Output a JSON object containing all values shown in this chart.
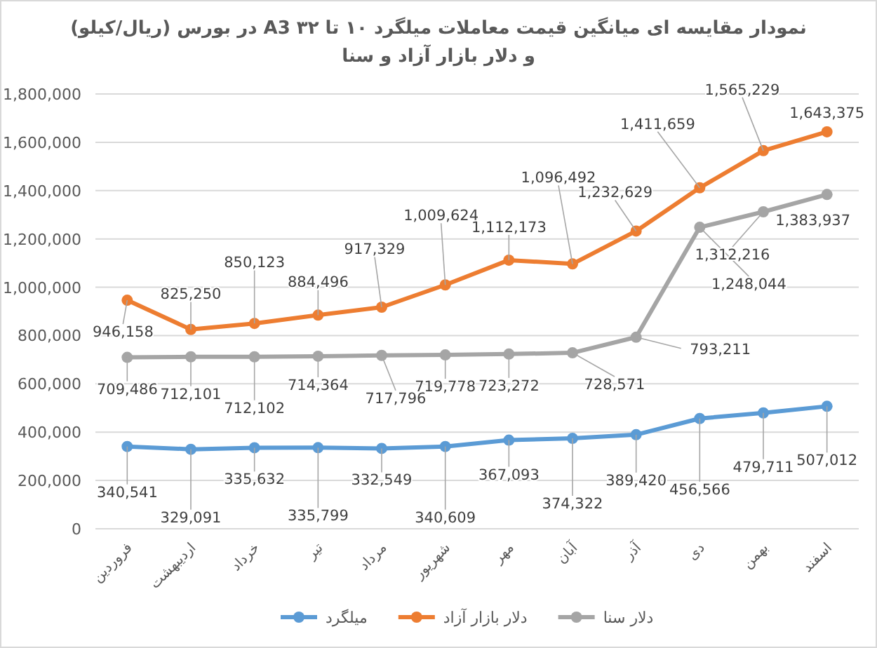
{
  "chart_data": {
    "type": "line",
    "title": "نمودار مقایسه ای میانگین قیمت معاملات میلگرد ۱۰ تا ۳۲ A3 در بورس  (ریال/کیلو)",
    "subtitle": "و دلار بازار آزاد و سنا",
    "categories": [
      "فروردین",
      "اردیبهشت",
      "خرداد",
      "تیر",
      "مرداد",
      "شهریور",
      "مهر",
      "آبان",
      "آذر",
      "دی",
      "بهمن",
      "اسفند"
    ],
    "series": [
      {
        "name": "میلگرد",
        "color": "#5b9bd5",
        "values": [
          340541,
          329091,
          335632,
          335799,
          332549,
          340609,
          367093,
          374322,
          389420,
          456566,
          479711,
          507012
        ],
        "value_labels": [
          "340,541",
          "329,091",
          "335,632",
          "335,799",
          "332,549",
          "340,609",
          "367,093",
          "374,322",
          "389,420",
          "456,566",
          "479,711",
          "507,012"
        ]
      },
      {
        "name": "دلار بازار آزاد",
        "color": "#ed7d31",
        "values": [
          946158,
          825250,
          850123,
          884496,
          917329,
          1009624,
          1112173,
          1096492,
          1232629,
          1411659,
          1565229,
          1643375
        ],
        "value_labels": [
          "946,158",
          "825,250",
          "850,123",
          "884,496",
          "917,329",
          "1,009,624",
          "1,112,173",
          "1,096,492",
          "1,232,629",
          "1,411,659",
          "1,565,229",
          "1,643,375"
        ]
      },
      {
        "name": "دلار سنا",
        "color": "#a5a5a5",
        "values": [
          709486,
          712101,
          712102,
          714364,
          717796,
          719778,
          723272,
          728571,
          793211,
          1248044,
          1312216,
          1383937
        ],
        "value_labels": [
          "709,486",
          "712,101",
          "712,102",
          "714,364",
          "717,796",
          "719,778",
          "723,272",
          "728,571",
          "793,211",
          "1,248,044",
          "1,312,216",
          "1,383,937"
        ]
      }
    ],
    "ylim": [
      0,
      1800000
    ],
    "yticks": [
      {
        "value": 0,
        "label": "0"
      },
      {
        "value": 200000,
        "label": "200,000"
      },
      {
        "value": 400000,
        "label": "400,000"
      },
      {
        "value": 600000,
        "label": "600,000"
      },
      {
        "value": 800000,
        "label": "800,000"
      },
      {
        "value": 1000000,
        "label": "1,000,000"
      },
      {
        "value": 1200000,
        "label": "1,200,000"
      },
      {
        "value": 1400000,
        "label": "1,400,000"
      },
      {
        "value": 1600000,
        "label": "1,600,000"
      },
      {
        "value": 1800000,
        "label": "1,800,000"
      }
    ],
    "grid": "y",
    "marker": "circle",
    "line_style": "solid",
    "legend": "bottom"
  }
}
